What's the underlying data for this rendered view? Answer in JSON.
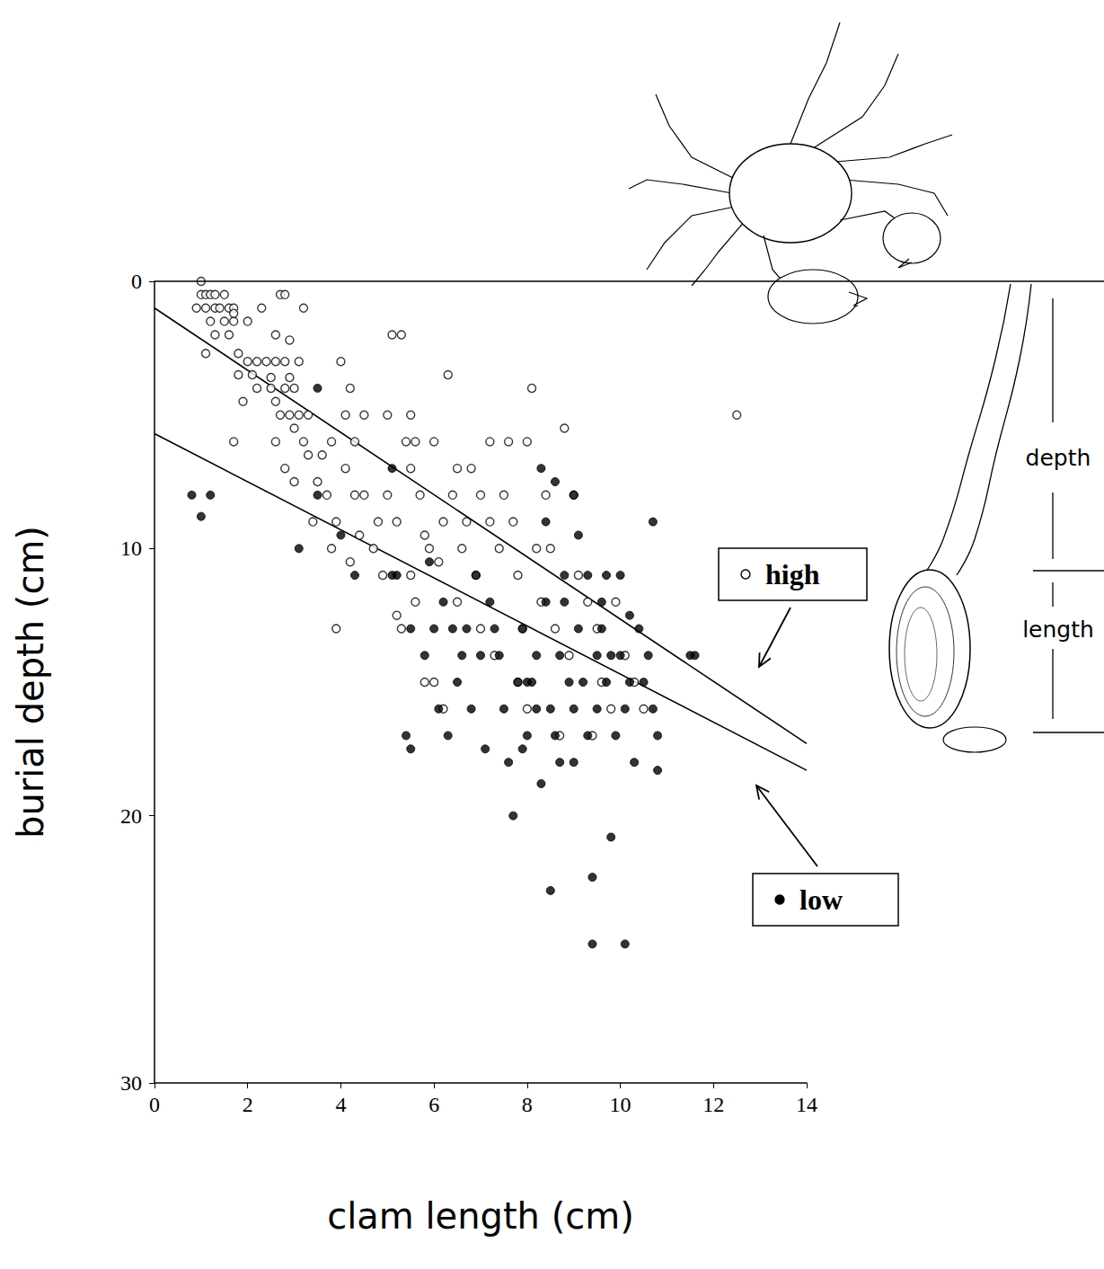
{
  "chart_data": {
    "type": "scatter",
    "xlabel": "clam length (cm)",
    "ylabel": "burial depth (cm)",
    "xlim": [
      0,
      14
    ],
    "xticks": [
      0,
      2,
      4,
      6,
      8,
      10,
      12,
      14
    ],
    "ylim": [
      0,
      30
    ],
    "yticks": [
      0,
      10,
      20,
      30
    ],
    "grid": false,
    "legend": "right",
    "annotations": [
      "depth",
      "length"
    ],
    "series": [
      {
        "name": "high",
        "color": "#000000",
        "marker": "open_circle",
        "x": [
          1.0,
          1.0,
          1.1,
          1.2,
          1.3,
          1.5,
          0.9,
          1.1,
          1.3,
          1.4,
          1.6,
          1.2,
          1.5,
          1.7,
          1.7,
          1.3,
          1.6,
          1.1,
          1.7,
          2.7,
          2.8,
          3.2,
          2.3,
          2.0,
          2.6,
          2.9,
          1.8,
          2.0,
          2.2,
          2.4,
          2.6,
          2.8,
          3.1,
          1.8,
          2.1,
          2.5,
          2.9,
          2.2,
          2.5,
          2.8,
          3.0,
          1.9,
          2.6,
          2.7,
          2.9,
          3.1,
          3.3,
          1.7,
          2.6,
          3.0,
          3.2,
          2.8,
          3.0,
          3.3,
          3.6,
          3.8,
          3.5,
          3.7,
          3.4,
          3.9,
          4.0,
          4.2,
          4.1,
          4.3,
          4.1,
          4.3,
          4.5,
          4.5,
          5.0,
          5.1,
          5.3,
          4.4,
          4.8,
          3.8,
          3.9,
          4.2,
          4.7,
          4.9,
          5.0,
          5.2,
          5.4,
          5.5,
          5.5,
          5.6,
          5.7,
          5.8,
          5.9,
          5.2,
          5.3,
          5.6,
          5.5,
          6.0,
          6.1,
          6.2,
          6.3,
          6.5,
          6.4,
          6.6,
          6.8,
          6.7,
          6.5,
          6.9,
          7.0,
          7.2,
          7.2,
          7.4,
          7.5,
          7.6,
          7.7,
          7.8,
          7.9,
          8.0,
          8.1,
          8.2,
          8.3,
          8.4,
          8.8,
          8.5,
          8.6,
          8.9,
          9.0,
          9.1,
          9.3,
          9.5,
          9.6,
          9.8,
          9.9,
          10.1,
          10.3,
          10.5,
          7.3,
          7.8,
          8.0,
          12.5,
          6.0,
          6.2,
          5.8,
          7.0,
          8.7,
          9.4
        ],
        "values": [
          0,
          0.5,
          0.5,
          0.5,
          0.5,
          0.5,
          1,
          1,
          1,
          1,
          1,
          1.5,
          1.5,
          1.5,
          1,
          2,
          2,
          2.7,
          1.2,
          0.5,
          0.5,
          1,
          1,
          1.5,
          2,
          2.2,
          2.7,
          3,
          3,
          3,
          3,
          3,
          3,
          3.5,
          3.5,
          3.6,
          3.6,
          4,
          4,
          4,
          4,
          4.5,
          4.5,
          5,
          5,
          5,
          5,
          6,
          6,
          5.5,
          6,
          7,
          7.5,
          6.5,
          6.5,
          6,
          7.5,
          8,
          9,
          9,
          3,
          4,
          5,
          6,
          7,
          8,
          8,
          5,
          5,
          2,
          2,
          9.5,
          9,
          10,
          13,
          10.5,
          10,
          11,
          8,
          9,
          6,
          7,
          5,
          6,
          8,
          9.5,
          10,
          12.5,
          13,
          12,
          11,
          6,
          10.5,
          9,
          3.5,
          7,
          8,
          10,
          7,
          9,
          12,
          11,
          8,
          6,
          9,
          10,
          8,
          6,
          9,
          11,
          13,
          6,
          4,
          10,
          12,
          8,
          5.5,
          10,
          13,
          14,
          8,
          11,
          12,
          13,
          15,
          16,
          12,
          14,
          15,
          16,
          14,
          15,
          16,
          5,
          15,
          16,
          15,
          13,
          17,
          17
        ],
        "fit": {
          "x": [
            0,
            14
          ],
          "values": [
            1.0,
            17.3
          ]
        }
      },
      {
        "name": "low",
        "color": "#000000",
        "marker": "circle",
        "x": [
          0.8,
          1.2,
          1.0,
          3.1,
          3.5,
          3.5,
          4.0,
          4.3,
          5.1,
          5.2,
          5.5,
          5.4,
          5.5,
          5.8,
          5.9,
          6.0,
          6.1,
          6.3,
          6.4,
          6.6,
          6.8,
          6.9,
          7.0,
          7.1,
          7.3,
          7.5,
          7.6,
          7.7,
          7.8,
          7.9,
          8.0,
          8.1,
          8.2,
          8.3,
          8.4,
          8.5,
          8.5,
          8.6,
          8.7,
          8.8,
          8.9,
          9.0,
          9.0,
          9.1,
          9.2,
          9.3,
          9.4,
          9.4,
          9.5,
          9.5,
          9.6,
          9.7,
          9.8,
          9.9,
          10.0,
          10.0,
          10.1,
          10.1,
          10.2,
          10.3,
          10.5,
          10.6,
          10.7,
          10.8,
          10.8,
          10.7,
          10.4,
          11.5,
          11.6,
          8.3,
          8.4,
          8.8,
          9.1,
          9.0,
          8.6,
          8.0,
          7.2,
          6.7,
          9.3,
          9.7,
          9.6,
          8.2,
          7.4,
          6.2,
          9.8,
          10.2,
          7.9,
          8.7,
          5.1,
          6.5
        ],
        "values": [
          8,
          8,
          8.8,
          10,
          4,
          8,
          9.5,
          11,
          7,
          11,
          13,
          17,
          17.5,
          14,
          10.5,
          13,
          16,
          17,
          13,
          14,
          16,
          11,
          14,
          17.5,
          13,
          16,
          18,
          20,
          15,
          13,
          17,
          15,
          14,
          18.8,
          12,
          16,
          22.8,
          17,
          14,
          11,
          15,
          16,
          18,
          13,
          15,
          17,
          22.3,
          24.8,
          14,
          16,
          12,
          15,
          20.8,
          17,
          11,
          14,
          24.8,
          16,
          12.5,
          18,
          15,
          14,
          16,
          18.3,
          17,
          9,
          13,
          14,
          14,
          7,
          9,
          12,
          9.5,
          8,
          7.5,
          15,
          12,
          13,
          11,
          11,
          13,
          16,
          14,
          12,
          14,
          15,
          17.5,
          18,
          11,
          15
        ],
        "fit": {
          "x": [
            0,
            14
          ],
          "values": [
            5.7,
            18.3
          ]
        }
      }
    ]
  }
}
